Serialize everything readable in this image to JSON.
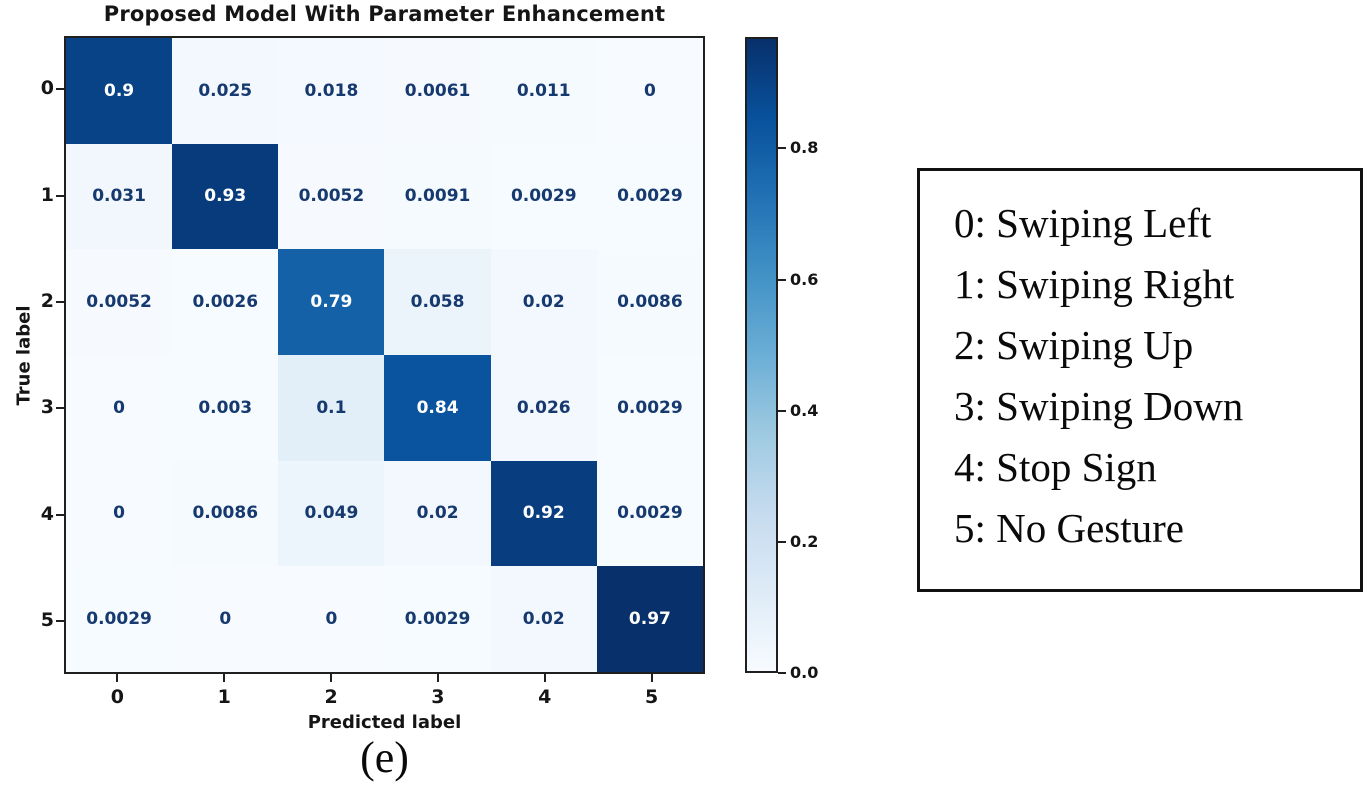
{
  "title": "Proposed Model With Parameter Enhancement",
  "chart_data": {
    "type": "heatmap",
    "title": "Proposed Model With Parameter Enhancement",
    "xlabel": "Predicted label",
    "ylabel": "True label",
    "x_ticklabels": [
      "0",
      "1",
      "2",
      "3",
      "4",
      "5"
    ],
    "y_ticklabels": [
      "0",
      "1",
      "2",
      "3",
      "4",
      "5"
    ],
    "values": [
      [
        0.9,
        0.025,
        0.018,
        0.0061,
        0.011,
        0
      ],
      [
        0.031,
        0.93,
        0.0052,
        0.0091,
        0.0029,
        0.0029
      ],
      [
        0.0052,
        0.0026,
        0.79,
        0.058,
        0.02,
        0.0086
      ],
      [
        0,
        0.003,
        0.1,
        0.84,
        0.026,
        0.0029
      ],
      [
        0,
        0.0086,
        0.049,
        0.02,
        0.92,
        0.0029
      ],
      [
        0.0029,
        0,
        0,
        0.0029,
        0.02,
        0.97
      ]
    ],
    "cell_labels": [
      [
        "0.9",
        "0.025",
        "0.018",
        "0.0061",
        "0.011",
        "0"
      ],
      [
        "0.031",
        "0.93",
        "0.0052",
        "0.0091",
        "0.0029",
        "0.0029"
      ],
      [
        "0.0052",
        "0.0026",
        "0.79",
        "0.058",
        "0.02",
        "0.0086"
      ],
      [
        "0",
        "0.003",
        "0.1",
        "0.84",
        "0.026",
        "0.0029"
      ],
      [
        "0",
        "0.0086",
        "0.049",
        "0.02",
        "0.92",
        "0.0029"
      ],
      [
        "0.0029",
        "0",
        "0",
        "0.0029",
        "0.02",
        "0.97"
      ]
    ],
    "vmin": 0,
    "vmax": 0.97,
    "colormap": "Blues",
    "colorbar_ticks": [
      0.0,
      0.2,
      0.4,
      0.6,
      0.8
    ],
    "colorbar_ticklabels": [
      "0.0",
      "0.2",
      "0.4",
      "0.6",
      "0.8"
    ],
    "grid": false,
    "legend_position": "right"
  },
  "legend": {
    "items": [
      "0: Swiping Left",
      "1: Swiping Right",
      "2: Swiping Up",
      "3: Swiping Down",
      "4: Stop Sign",
      "5: No Gesture"
    ]
  },
  "caption": "(e)",
  "colors": {
    "colormap_stops": [
      "#f7fbff",
      "#deebf7",
      "#c6dbef",
      "#9ecae1",
      "#6baed6",
      "#4292c6",
      "#2171b5",
      "#08519c",
      "#08306b"
    ],
    "cell_text_dark": "#16396f",
    "cell_text_light": "#ffffff",
    "axis": "#1f1f1f",
    "title_text": "#151515"
  }
}
